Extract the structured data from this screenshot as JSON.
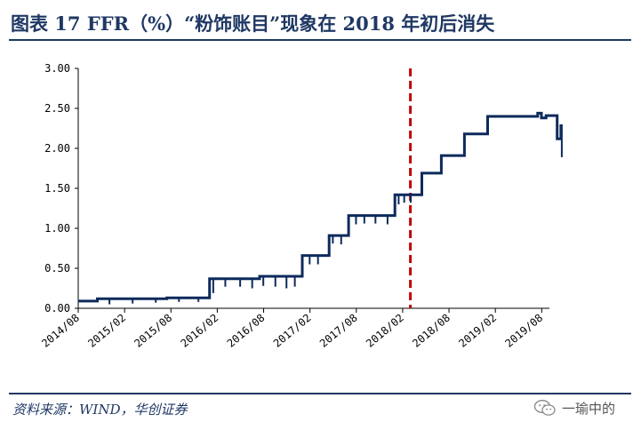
{
  "header": {
    "title": "图表 17   FFR（%）“粉饰账目”现象在 2018 年初后消失"
  },
  "footer": {
    "source": "资料来源：WIND，华创证券",
    "watermark_text": "一瑜中的",
    "watermark_icon": "wechat-icon"
  },
  "colors": {
    "title": "#1f3864",
    "series": "#0d2a5c",
    "marker": "#c00000"
  },
  "chart_data": {
    "type": "line",
    "title": "FFR（%）",
    "xlabel": "",
    "ylabel": "",
    "ylim": [
      0,
      3
    ],
    "xlim": [
      "2014/08",
      "2019/09"
    ],
    "grid": false,
    "legend": "none",
    "y_ticks": [
      "3.00",
      "2.50",
      "2.00",
      "1.50",
      "1.00",
      "0.50",
      "0.00"
    ],
    "x_ticks": [
      "2014/08",
      "2015/02",
      "2015/08",
      "2016/02",
      "2016/08",
      "2017/02",
      "2017/08",
      "2018/02",
      "2018/08",
      "2019/02",
      "2019/08"
    ],
    "annotations": [
      {
        "type": "vertical-dashed-line",
        "x": "2018/03",
        "color": "#c00000"
      }
    ],
    "series": [
      {
        "name": "FFR",
        "x": [
          2014.58,
          2014.75,
          2014.79,
          2015.5,
          2015.54,
          2015.96,
          2016.0,
          2016.5,
          2016.54,
          2016.96,
          2017.0,
          2017.25,
          2017.29,
          2017.46,
          2017.5,
          2017.96,
          2018.0,
          2018.25,
          2018.29,
          2018.46,
          2018.5,
          2018.71,
          2018.75,
          2018.96,
          2019.0,
          2019.5,
          2019.54,
          2019.58,
          2019.63,
          2019.71,
          2019.75,
          2019.77,
          2019.79
        ],
        "y": [
          0.09,
          0.09,
          0.12,
          0.12,
          0.13,
          0.13,
          0.37,
          0.37,
          0.4,
          0.4,
          0.66,
          0.66,
          0.91,
          0.91,
          1.16,
          1.16,
          1.42,
          1.42,
          1.69,
          1.69,
          1.91,
          1.91,
          2.18,
          2.18,
          2.4,
          2.4,
          2.44,
          2.38,
          2.41,
          2.41,
          2.12,
          2.12,
          2.3
        ]
      }
    ],
    "dips": [
      {
        "x": 2014.92,
        "y": 0.05
      },
      {
        "x": 2015.17,
        "y": 0.06
      },
      {
        "x": 2015.42,
        "y": 0.07
      },
      {
        "x": 2015.67,
        "y": 0.08
      },
      {
        "x": 2015.88,
        "y": 0.08
      },
      {
        "x": 2016.04,
        "y": 0.19
      },
      {
        "x": 2016.17,
        "y": 0.27
      },
      {
        "x": 2016.33,
        "y": 0.27
      },
      {
        "x": 2016.46,
        "y": 0.25
      },
      {
        "x": 2016.58,
        "y": 0.28
      },
      {
        "x": 2016.71,
        "y": 0.27
      },
      {
        "x": 2016.83,
        "y": 0.25
      },
      {
        "x": 2016.92,
        "y": 0.27
      },
      {
        "x": 2017.08,
        "y": 0.55
      },
      {
        "x": 2017.17,
        "y": 0.55
      },
      {
        "x": 2017.33,
        "y": 0.81
      },
      {
        "x": 2017.42,
        "y": 0.8
      },
      {
        "x": 2017.58,
        "y": 1.05
      },
      {
        "x": 2017.67,
        "y": 1.06
      },
      {
        "x": 2017.79,
        "y": 1.06
      },
      {
        "x": 2017.92,
        "y": 1.05
      },
      {
        "x": 2018.04,
        "y": 1.3
      },
      {
        "x": 2018.1,
        "y": 1.32
      },
      {
        "x": 2018.17,
        "y": 1.32
      },
      {
        "x": 2019.8,
        "y": 1.89
      }
    ]
  }
}
